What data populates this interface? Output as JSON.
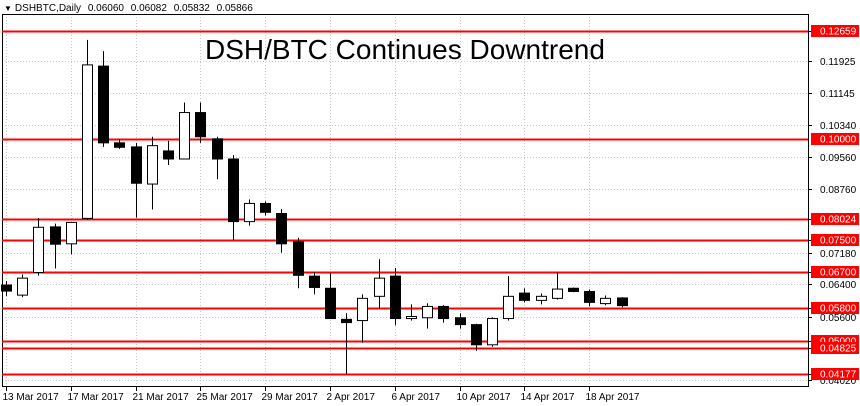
{
  "header": {
    "symbol": "DSHBTC,Daily",
    "open": "0.06060",
    "high": "0.06082",
    "low": "0.05832",
    "close": "0.05866"
  },
  "chart_data": {
    "type": "candlestick",
    "title": "DSH/BTC Continues Downtrend",
    "ylim": [
      0.0388,
      0.1309
    ],
    "y_ticks": [
      "0.12659",
      "0.11925",
      "0.11145",
      "0.10340",
      "0.09560",
      "0.08760",
      "0.08024",
      "0.07500",
      "0.07180",
      "0.06700",
      "0.06400",
      "0.05800",
      "0.05600",
      "0.05000",
      "0.04825",
      "0.04177",
      "0.04020"
    ],
    "x_tick_labels": [
      {
        "label": "13 Mar 2017",
        "index": 0
      },
      {
        "label": "17 Mar 2017",
        "index": 4
      },
      {
        "label": "21 Mar 2017",
        "index": 8
      },
      {
        "label": "25 Mar 2017",
        "index": 12
      },
      {
        "label": "29 Mar 2017",
        "index": 16
      },
      {
        "label": "2 Apr 2017",
        "index": 20
      },
      {
        "label": "6 Apr 2017",
        "index": 24
      },
      {
        "label": "10 Apr 2017",
        "index": 28
      },
      {
        "label": "14 Apr 2017",
        "index": 32
      },
      {
        "label": "18 Apr 2017",
        "index": 36
      }
    ],
    "levels": [
      {
        "value": 0.12659,
        "label": "0.12659"
      },
      {
        "value": 0.1,
        "label": "0.10000"
      },
      {
        "value": 0.08024,
        "label": "0.08024"
      },
      {
        "value": 0.075,
        "label": "0.07500"
      },
      {
        "value": 0.067,
        "label": "0.06700"
      },
      {
        "value": 0.058,
        "label": "0.05800"
      },
      {
        "value": 0.05,
        "label": "0.05000"
      },
      {
        "value": 0.04825,
        "label": "0.04825"
      },
      {
        "value": 0.04177,
        "label": "0.04177"
      }
    ],
    "candles": [
      {
        "o": 0.0638,
        "h": 0.0648,
        "l": 0.0611,
        "c": 0.0623
      },
      {
        "o": 0.0613,
        "h": 0.0664,
        "l": 0.0608,
        "c": 0.0655
      },
      {
        "o": 0.0669,
        "h": 0.0804,
        "l": 0.0661,
        "c": 0.0781
      },
      {
        "o": 0.0782,
        "h": 0.079,
        "l": 0.0679,
        "c": 0.0739
      },
      {
        "o": 0.074,
        "h": 0.0792,
        "l": 0.0714,
        "c": 0.0793
      },
      {
        "o": 0.0803,
        "h": 0.1245,
        "l": 0.08,
        "c": 0.1183
      },
      {
        "o": 0.118,
        "h": 0.1217,
        "l": 0.098,
        "c": 0.099
      },
      {
        "o": 0.099,
        "h": 0.1,
        "l": 0.0975,
        "c": 0.0979
      },
      {
        "o": 0.098,
        "h": 0.099,
        "l": 0.0805,
        "c": 0.089
      },
      {
        "o": 0.0888,
        "h": 0.1005,
        "l": 0.0825,
        "c": 0.0983
      },
      {
        "o": 0.097,
        "h": 0.0995,
        "l": 0.0935,
        "c": 0.095
      },
      {
        "o": 0.095,
        "h": 0.109,
        "l": 0.095,
        "c": 0.1065
      },
      {
        "o": 0.1065,
        "h": 0.109,
        "l": 0.099,
        "c": 0.1005
      },
      {
        "o": 0.1,
        "h": 0.1005,
        "l": 0.09,
        "c": 0.095
      },
      {
        "o": 0.095,
        "h": 0.096,
        "l": 0.075,
        "c": 0.0795
      },
      {
        "o": 0.0795,
        "h": 0.085,
        "l": 0.0785,
        "c": 0.084
      },
      {
        "o": 0.084,
        "h": 0.0845,
        "l": 0.081,
        "c": 0.0818
      },
      {
        "o": 0.0815,
        "h": 0.0826,
        "l": 0.0718,
        "c": 0.074
      },
      {
        "o": 0.0745,
        "h": 0.0755,
        "l": 0.063,
        "c": 0.0662
      },
      {
        "o": 0.066,
        "h": 0.067,
        "l": 0.0615,
        "c": 0.0632
      },
      {
        "o": 0.063,
        "h": 0.0668,
        "l": 0.056,
        "c": 0.0555
      },
      {
        "o": 0.0553,
        "h": 0.0568,
        "l": 0.0418,
        "c": 0.0545
      },
      {
        "o": 0.055,
        "h": 0.0615,
        "l": 0.0495,
        "c": 0.0605
      },
      {
        "o": 0.061,
        "h": 0.0702,
        "l": 0.058,
        "c": 0.0655
      },
      {
        "o": 0.066,
        "h": 0.068,
        "l": 0.0538,
        "c": 0.0555
      },
      {
        "o": 0.0555,
        "h": 0.059,
        "l": 0.055,
        "c": 0.056
      },
      {
        "o": 0.0557,
        "h": 0.0593,
        "l": 0.053,
        "c": 0.0585
      },
      {
        "o": 0.0585,
        "h": 0.0588,
        "l": 0.0545,
        "c": 0.0555
      },
      {
        "o": 0.0557,
        "h": 0.0568,
        "l": 0.053,
        "c": 0.054
      },
      {
        "o": 0.054,
        "h": 0.0542,
        "l": 0.0475,
        "c": 0.049
      },
      {
        "o": 0.049,
        "h": 0.0558,
        "l": 0.0485,
        "c": 0.0555
      },
      {
        "o": 0.0555,
        "h": 0.066,
        "l": 0.055,
        "c": 0.061
      },
      {
        "o": 0.0618,
        "h": 0.063,
        "l": 0.0595,
        "c": 0.06
      },
      {
        "o": 0.06,
        "h": 0.0617,
        "l": 0.059,
        "c": 0.061
      },
      {
        "o": 0.0605,
        "h": 0.067,
        "l": 0.0602,
        "c": 0.0628
      },
      {
        "o": 0.063,
        "h": 0.0632,
        "l": 0.062,
        "c": 0.0622
      },
      {
        "o": 0.0622,
        "h": 0.0627,
        "l": 0.0585,
        "c": 0.0595
      },
      {
        "o": 0.0592,
        "h": 0.0612,
        "l": 0.0588,
        "c": 0.0605
      },
      {
        "o": 0.0606,
        "h": 0.0608,
        "l": 0.0583,
        "c": 0.0587
      }
    ],
    "colors": {
      "level_line": "#ff0000",
      "level_label_bg": "#ff0000",
      "level_label_text": "#ffffff",
      "grid": "#c8c8c8",
      "bull_body": "#ffffff",
      "bear_body": "#000000",
      "candle_outline": "#000000",
      "axis_text": "#000000"
    },
    "grid": true
  }
}
